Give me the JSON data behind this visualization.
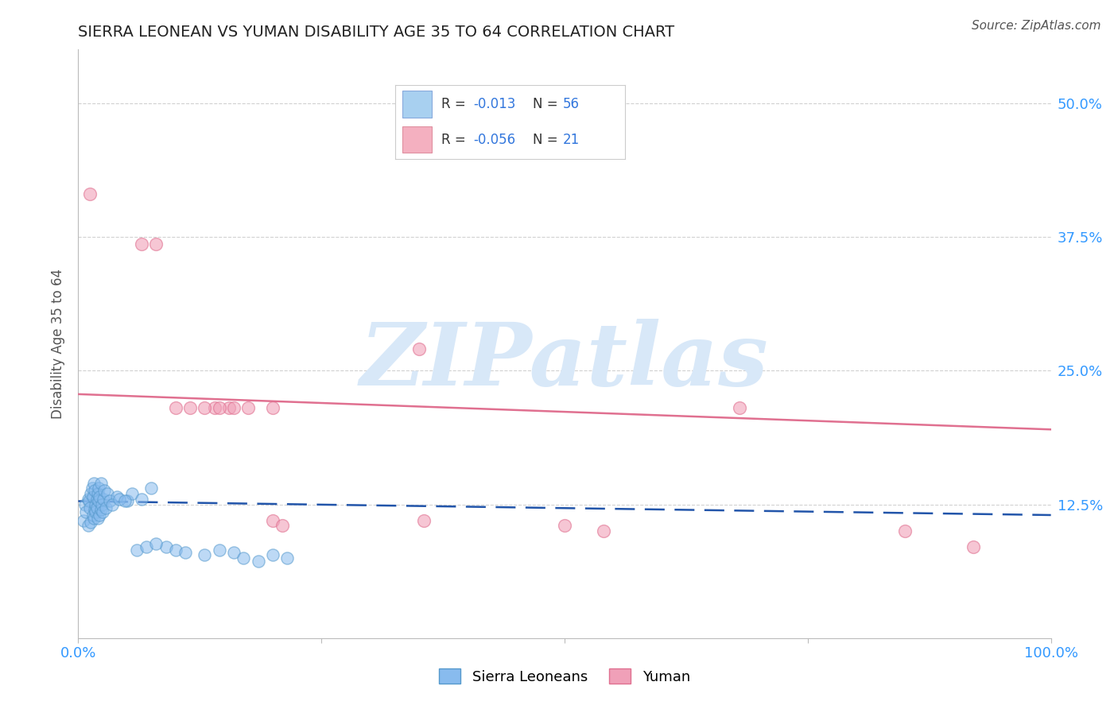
{
  "title": "SIERRA LEONEAN VS YUMAN DISABILITY AGE 35 TO 64 CORRELATION CHART",
  "source": "Source: ZipAtlas.com",
  "ylabel": "Disability Age 35 to 64",
  "xlim": [
    0.0,
    1.0
  ],
  "ylim": [
    0.0,
    0.55
  ],
  "yticks": [
    0.125,
    0.25,
    0.375,
    0.5
  ],
  "ytick_labels": [
    "12.5%",
    "25.0%",
    "37.5%",
    "50.0%"
  ],
  "xticks": [
    0.0,
    0.25,
    0.5,
    0.75,
    1.0
  ],
  "xtick_labels": [
    "0.0%",
    "",
    "",
    "",
    "100.0%"
  ],
  "blue_scatter_x": [
    0.005,
    0.007,
    0.008,
    0.01,
    0.01,
    0.011,
    0.012,
    0.013,
    0.013,
    0.014,
    0.015,
    0.015,
    0.016,
    0.016,
    0.017,
    0.017,
    0.018,
    0.018,
    0.019,
    0.019,
    0.02,
    0.02,
    0.021,
    0.021,
    0.022,
    0.022,
    0.023,
    0.023,
    0.024,
    0.025,
    0.026,
    0.027,
    0.028,
    0.03,
    0.032,
    0.04,
    0.05,
    0.055,
    0.065,
    0.075,
    0.09,
    0.1,
    0.11,
    0.13,
    0.145,
    0.16,
    0.17,
    0.185,
    0.2,
    0.215,
    0.035,
    0.042,
    0.048,
    0.06,
    0.07,
    0.08
  ],
  "blue_scatter_y": [
    0.11,
    0.125,
    0.118,
    0.13,
    0.105,
    0.128,
    0.122,
    0.135,
    0.108,
    0.14,
    0.115,
    0.132,
    0.112,
    0.145,
    0.12,
    0.138,
    0.125,
    0.118,
    0.13,
    0.122,
    0.135,
    0.112,
    0.128,
    0.14,
    0.115,
    0.132,
    0.12,
    0.145,
    0.125,
    0.118,
    0.13,
    0.138,
    0.122,
    0.135,
    0.128,
    0.132,
    0.128,
    0.135,
    0.13,
    0.14,
    0.085,
    0.082,
    0.08,
    0.078,
    0.082,
    0.08,
    0.075,
    0.072,
    0.078,
    0.075,
    0.125,
    0.13,
    0.128,
    0.082,
    0.085,
    0.088
  ],
  "pink_scatter_x": [
    0.012,
    0.065,
    0.08,
    0.14,
    0.155,
    0.16,
    0.175,
    0.2,
    0.35,
    0.355,
    0.5,
    0.54,
    0.68,
    0.85,
    0.92,
    0.1,
    0.115,
    0.13,
    0.145,
    0.2,
    0.21
  ],
  "pink_scatter_y": [
    0.415,
    0.368,
    0.368,
    0.215,
    0.215,
    0.215,
    0.215,
    0.215,
    0.27,
    0.11,
    0.105,
    0.1,
    0.215,
    0.1,
    0.085,
    0.215,
    0.215,
    0.215,
    0.215,
    0.11,
    0.105
  ],
  "blue_line_y_start": 0.128,
  "blue_line_y_end": 0.115,
  "pink_line_y_start": 0.228,
  "pink_line_y_end": 0.195,
  "background_color": "#ffffff",
  "grid_color": "#cccccc",
  "blue_scatter_face": "#88bbee",
  "blue_scatter_edge": "#5599cc",
  "pink_scatter_face": "#f0a0b8",
  "pink_scatter_edge": "#e07090",
  "blue_line_color": "#2255aa",
  "pink_line_color": "#e07090",
  "tick_color": "#3399ff",
  "title_color": "#222222",
  "source_color": "#555555",
  "ylabel_color": "#555555",
  "legend_blue_face": "#a8d0f0",
  "legend_blue_edge": "#88aadd",
  "legend_pink_face": "#f4b0c0",
  "legend_pink_edge": "#e090a0",
  "watermark_text": "ZIPatlas",
  "watermark_color": "#d8e8f8",
  "r_value_color": "#3377dd",
  "n_value_color": "#3377dd",
  "label_color": "#333333"
}
